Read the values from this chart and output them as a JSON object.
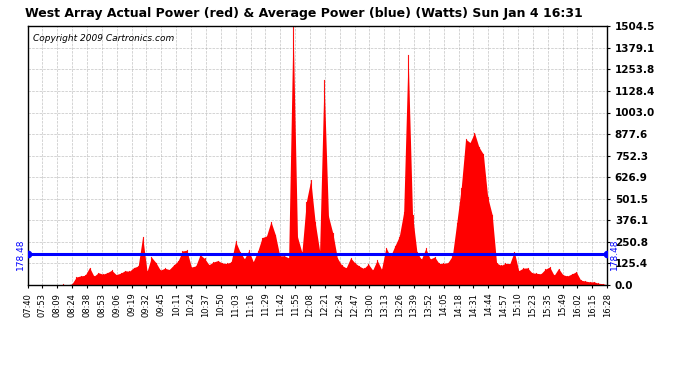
{
  "title": "West Array Actual Power (red) & Average Power (blue) (Watts) Sun Jan 4 16:31",
  "copyright": "Copyright 2009 Cartronics.com",
  "average_power": 178.48,
  "y_max": 1504.5,
  "y_min": 0.0,
  "yticks": [
    0.0,
    125.4,
    250.8,
    376.1,
    501.5,
    626.9,
    752.3,
    877.6,
    1003.0,
    1128.4,
    1253.8,
    1379.1,
    1504.5
  ],
  "bg_color": "#ffffff",
  "plot_bg_color": "#ffffff",
  "grid_color": "#aaaaaa",
  "bar_color": "#ff0000",
  "avg_line_color": "#0000ff",
  "xtick_labels": [
    "07:40",
    "07:53",
    "08:09",
    "08:24",
    "08:38",
    "08:53",
    "09:06",
    "09:19",
    "09:32",
    "09:45",
    "10:11",
    "10:24",
    "10:37",
    "10:50",
    "11:03",
    "11:16",
    "11:29",
    "11:42",
    "11:55",
    "12:08",
    "12:21",
    "12:34",
    "12:47",
    "13:00",
    "13:13",
    "13:26",
    "13:39",
    "13:52",
    "14:05",
    "14:18",
    "14:31",
    "14:44",
    "14:57",
    "15:10",
    "15:23",
    "15:35",
    "15:49",
    "16:02",
    "16:15",
    "16:28"
  ]
}
